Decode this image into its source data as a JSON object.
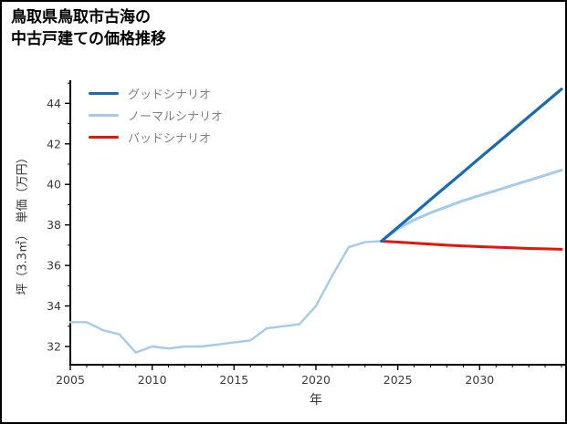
{
  "title": {
    "line1": "鳥取県鳥取市古海の",
    "line2": "中古戸建ての価格推移"
  },
  "legend": [
    {
      "id": "good",
      "label": "グッドシナリオ",
      "color": "#176bb3"
    },
    {
      "id": "normal",
      "label": "ノーマルシナリオ",
      "color": "#a4cbe9"
    },
    {
      "id": "bad",
      "label": "バッドシナリオ",
      "color": "#e8130b"
    }
  ],
  "axes": {
    "xlabel": "年",
    "ylabel": "坪（3.3㎡）　単価（万円）"
  },
  "chart_data": {
    "type": "line",
    "title": "鳥取県鳥取市古海の中古戸建ての価格推移",
    "xlabel": "年",
    "ylabel": "坪（3.3㎡）単価（万円）",
    "xlim": [
      2005,
      2035
    ],
    "ylim": [
      31.1,
      45.05
    ],
    "x_major_ticks": [
      2005,
      2010,
      2015,
      2020,
      2025,
      2030
    ],
    "y_major_ticks": [
      32,
      34,
      36,
      38,
      40,
      42,
      44
    ],
    "grid": false,
    "legend_position": "top-left",
    "series": [
      {
        "id": "history",
        "color": "#a4cbe9",
        "width": 2.4,
        "x": [
          2005,
          2006,
          2007,
          2008,
          2009,
          2010,
          2011,
          2012,
          2013,
          2014,
          2015,
          2016,
          2017,
          2018,
          2019,
          2020,
          2021,
          2022,
          2023,
          2024
        ],
        "y": [
          33.2,
          33.2,
          32.8,
          32.6,
          31.7,
          32.0,
          31.9,
          32.0,
          32.0,
          32.1,
          32.2,
          32.3,
          32.9,
          33.0,
          33.1,
          34.0,
          35.5,
          36.9,
          37.15,
          37.2
        ]
      },
      {
        "id": "bad",
        "label": "バッドシナリオ",
        "color": "#e8130b",
        "width": 3,
        "x": [
          2024,
          2025,
          2026,
          2027,
          2028,
          2029,
          2030,
          2031,
          2032,
          2033,
          2034,
          2035
        ],
        "y": [
          37.2,
          37.15,
          37.1,
          37.05,
          37.0,
          36.96,
          36.93,
          36.9,
          36.87,
          36.84,
          36.82,
          36.8
        ]
      },
      {
        "id": "normal",
        "label": "ノーマルシナリオ",
        "color": "#a4cbe9",
        "width": 3,
        "x": [
          2024,
          2025,
          2026,
          2027,
          2028,
          2029,
          2030,
          2031,
          2032,
          2033,
          2034,
          2035
        ],
        "y": [
          37.2,
          37.8,
          38.25,
          38.6,
          38.9,
          39.2,
          39.45,
          39.7,
          39.95,
          40.2,
          40.45,
          40.7
        ]
      },
      {
        "id": "good",
        "label": "グッドシナリオ",
        "color": "#176bb3",
        "width": 3.2,
        "x": [
          2024,
          2025,
          2026,
          2027,
          2028,
          2029,
          2030,
          2031,
          2032,
          2033,
          2034,
          2035
        ],
        "y": [
          37.2,
          37.88,
          38.56,
          39.25,
          39.93,
          40.61,
          41.3,
          41.98,
          42.66,
          43.34,
          44.02,
          44.7
        ]
      }
    ]
  }
}
